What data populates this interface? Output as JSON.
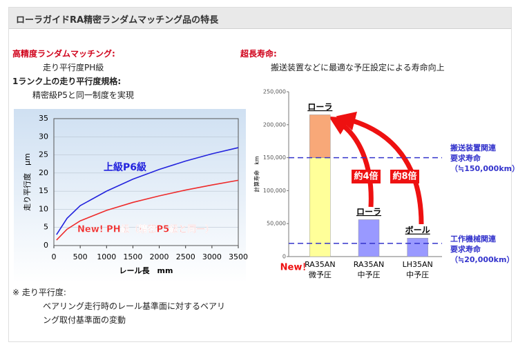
{
  "header": {
    "title": "ローラガイドRA精密ランダムマッチング品の特長"
  },
  "left": {
    "heading1": "高精度ランダムマッチング:",
    "text1": "走り平行度PH級",
    "heading2": "1ランク上の走り平行度規格:",
    "text2": "精密級P5と同一制度を実現"
  },
  "right": {
    "heading": "超長寿命:",
    "text": "搬送装置などに最適な予圧設定による寿命向上"
  },
  "note": {
    "label": "※ 走り平行度:",
    "lines": [
      "ベアリング走行時のレール基準面に対するベアリ",
      "ング取付基準面の変動"
    ]
  },
  "chart_data": [
    {
      "type": "line",
      "xlabel": "レール長　mm",
      "ylabel": "走り平行度　μm",
      "x": [
        50,
        250,
        500,
        1000,
        1500,
        2000,
        2500,
        3000,
        3500
      ],
      "series": [
        {
          "name": "上級P6級",
          "color": "#2222dd",
          "values": [
            3,
            7.5,
            11,
            15,
            18.3,
            21,
            23.3,
            25.3,
            27
          ]
        },
        {
          "name": "New! PH級（精密P5級と同一）",
          "color": "#ee2a2a",
          "values": [
            1.5,
            4.5,
            6.8,
            9.7,
            11.9,
            13.7,
            15.3,
            16.7,
            18
          ]
        }
      ],
      "xlim": [
        0,
        3500
      ],
      "xticks": [
        0,
        500,
        1000,
        1500,
        2000,
        2500,
        3000,
        3500
      ],
      "ylim": [
        0,
        35
      ],
      "yticks": [
        0,
        5,
        10,
        15,
        20,
        25,
        30,
        35
      ]
    },
    {
      "type": "bar",
      "ylabel": "計算寿命　km",
      "categories": [
        "RA35AN",
        "RA35AN",
        "LH35AN"
      ],
      "subcategories": [
        "微予圧",
        "中予圧",
        "中予圧"
      ],
      "bar_labels": [
        "ローラ",
        "ローラ",
        "ボール"
      ],
      "series": [
        {
          "color": "#ffff99",
          "values": [
            150000,
            null,
            null
          ]
        },
        {
          "color": "#f8a878",
          "values": [
            65000,
            null,
            null
          ]
        },
        {
          "color": "#9999ff",
          "values": [
            null,
            56000,
            28000
          ]
        }
      ],
      "ylim": [
        0,
        250000
      ],
      "yticks": [
        0,
        {
          "value": 50000,
          "label": "50,000"
        },
        {
          "value": 100000,
          "label": "100,000"
        },
        {
          "value": 150000,
          "label": "150,000"
        },
        {
          "value": 200000,
          "label": "200,000"
        },
        {
          "value": 250000,
          "label": "250,000"
        }
      ],
      "reference_lines": [
        {
          "value": 150000,
          "color": "#3333cc",
          "label": [
            "搬送装置関連",
            "要求寿命",
            "（≒150,000km）"
          ]
        },
        {
          "value": 20000,
          "color": "#3333cc",
          "label": [
            "工作機械関連",
            "要求寿命",
            "（≒20,000km）"
          ]
        }
      ],
      "annotations": [
        "約4倍",
        "約8倍",
        "New！"
      ]
    }
  ]
}
